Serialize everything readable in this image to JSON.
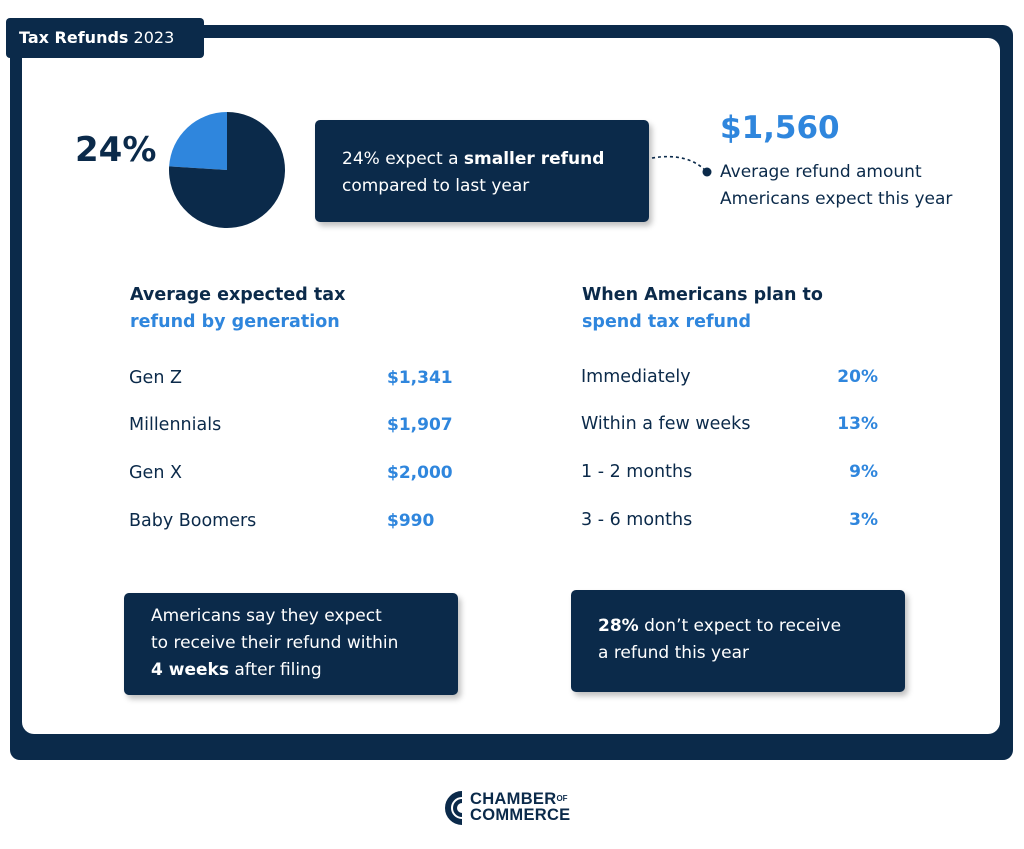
{
  "header": {
    "title_bold": "Tax Refunds",
    "title_year": "2023"
  },
  "colors": {
    "navy": "#0b2a4a",
    "accent": "#2f86dd",
    "pie_small": "#2f86dd",
    "pie_large": "#0b2a4a"
  },
  "chart_data": {
    "type": "pie",
    "slices": [
      {
        "value": 24
      },
      {
        "value": 76
      }
    ],
    "label": "24%"
  },
  "smaller_refund": {
    "prefix": "24% expect a ",
    "bold": "smaller refund",
    "suffix": "compared to last year"
  },
  "average_refund": {
    "amount": "$1,560",
    "line1": "Average refund amount",
    "line2": "Americans expect this year"
  },
  "by_generation": {
    "heading_line1": "Average expected tax",
    "heading_line2": "refund by generation",
    "rows": [
      {
        "label": "Gen Z",
        "value": "$1,341"
      },
      {
        "label": "Millennials",
        "value": "$1,907"
      },
      {
        "label": "Gen X",
        "value": "$2,000"
      },
      {
        "label": "Baby Boomers",
        "value": "$990"
      }
    ]
  },
  "spend_timing": {
    "heading_line1": "When Americans plan to",
    "heading_line2": "spend tax refund",
    "rows": [
      {
        "label": "Immediately",
        "value": "20%"
      },
      {
        "label": "Within a few weeks",
        "value": "13%"
      },
      {
        "label": "1 - 2 months",
        "value": "9%"
      },
      {
        "label": "3 - 6 months",
        "value": "3%"
      }
    ]
  },
  "receive_box": {
    "line1": "Americans say they expect",
    "line2": "to receive their refund within",
    "bold": "4 weeks",
    "suffix": " after filing"
  },
  "no_refund_box": {
    "bold": "28%",
    "line1_rest": " don’t expect to receive",
    "line2": "a refund this year"
  },
  "logo": {
    "top": "CHAMBER",
    "of": "OF",
    "bottom": "COMMERCE"
  }
}
